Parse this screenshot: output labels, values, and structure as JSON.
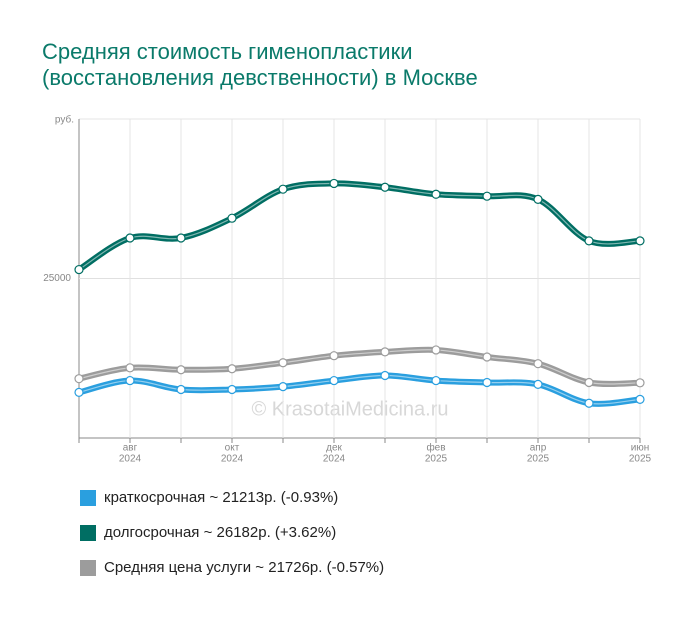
{
  "chart_data": {
    "type": "line",
    "title_lines": [
      "Средняя стоимость гименопластики",
      "(восстановления девственности) в Москве"
    ],
    "ylabel": "руб.",
    "watermark": "© KrasotaiMedicina.ru",
    "categories": [
      null,
      [
        "авг",
        "2024"
      ],
      null,
      [
        "окт",
        "2024"
      ],
      null,
      [
        "дек",
        "2024"
      ],
      null,
      [
        "фев",
        "2025"
      ],
      null,
      [
        "апр",
        "2025"
      ],
      null,
      [
        "июн",
        "2025"
      ]
    ],
    "ylim": [
      20000,
      30000
    ],
    "yticks": [
      25000
    ],
    "grid": true,
    "series": [
      {
        "name": "краткосрочная ~ 21213р. (-0.93%)",
        "color": "#2a9fdf",
        "values": [
          21430,
          21800,
          21520,
          21520,
          21610,
          21800,
          21960,
          21800,
          21740,
          21680,
          21090,
          21210
        ]
      },
      {
        "name": "долгосрочная ~ 26182р. (+3.62%)",
        "color": "#006e63",
        "values": [
          25280,
          26270,
          26270,
          26890,
          27800,
          27980,
          27860,
          27640,
          27580,
          27480,
          26180,
          26180
        ]
      },
      {
        "name": "Средняя цена услуги ~ 21726р. (-0.57%)",
        "color": "#9c9c9c",
        "values": [
          21860,
          22200,
          22140,
          22170,
          22360,
          22580,
          22700,
          22760,
          22540,
          22330,
          21740,
          21730
        ]
      }
    ]
  }
}
